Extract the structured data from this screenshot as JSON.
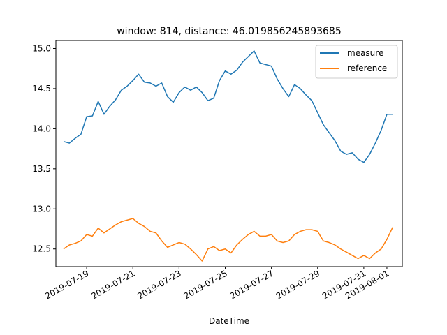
{
  "chart_data": {
    "type": "line",
    "title": "window: 814, distance: 46.019856245893685",
    "xlabel": "DateTime",
    "ylabel": "",
    "x_range": [
      "2019-07-17T16:00",
      "2019-08-01T16:00"
    ],
    "ylim": [
      12.28,
      15.1
    ],
    "yticks": [
      12.5,
      13.0,
      13.5,
      14.0,
      14.5,
      15.0
    ],
    "ytick_labels": [
      "12.5",
      "13.0",
      "13.5",
      "14.0",
      "14.5",
      "15.0"
    ],
    "xticks": [
      "2019-07-19",
      "2019-07-21",
      "2019-07-23",
      "2019-07-25",
      "2019-07-27",
      "2019-07-29",
      "2019-07-31",
      "2019-08-01"
    ],
    "grid": false,
    "legend_position": "top-right",
    "series": [
      {
        "name": "measure",
        "color": "#1f77b4",
        "x": [
          "2019-07-18T00:00",
          "2019-07-18T06:00",
          "2019-07-18T12:00",
          "2019-07-18T18:00",
          "2019-07-19T00:00",
          "2019-07-19T06:00",
          "2019-07-19T12:00",
          "2019-07-19T18:00",
          "2019-07-20T00:00",
          "2019-07-20T06:00",
          "2019-07-20T12:00",
          "2019-07-20T18:00",
          "2019-07-21T00:00",
          "2019-07-21T06:00",
          "2019-07-21T12:00",
          "2019-07-21T18:00",
          "2019-07-22T00:00",
          "2019-07-22T06:00",
          "2019-07-22T12:00",
          "2019-07-22T18:00",
          "2019-07-23T00:00",
          "2019-07-23T06:00",
          "2019-07-23T12:00",
          "2019-07-23T18:00",
          "2019-07-24T00:00",
          "2019-07-24T06:00",
          "2019-07-24T12:00",
          "2019-07-24T18:00",
          "2019-07-25T00:00",
          "2019-07-25T06:00",
          "2019-07-25T12:00",
          "2019-07-25T18:00",
          "2019-07-26T00:00",
          "2019-07-26T06:00",
          "2019-07-26T12:00",
          "2019-07-26T18:00",
          "2019-07-27T00:00",
          "2019-07-27T06:00",
          "2019-07-27T12:00",
          "2019-07-27T18:00",
          "2019-07-28T00:00",
          "2019-07-28T06:00",
          "2019-07-28T12:00",
          "2019-07-28T18:00",
          "2019-07-29T00:00",
          "2019-07-29T06:00",
          "2019-07-29T12:00",
          "2019-07-29T18:00",
          "2019-07-30T00:00",
          "2019-07-30T06:00",
          "2019-07-30T12:00",
          "2019-07-30T18:00",
          "2019-07-31T00:00",
          "2019-07-31T06:00",
          "2019-07-31T12:00",
          "2019-07-31T18:00",
          "2019-08-01T00:00",
          "2019-08-01T06:00"
        ],
        "values": [
          13.84,
          13.82,
          13.88,
          13.93,
          14.15,
          14.16,
          14.34,
          14.18,
          14.28,
          14.36,
          14.48,
          14.53,
          14.6,
          14.68,
          14.58,
          14.57,
          14.53,
          14.57,
          14.4,
          14.33,
          14.45,
          14.52,
          14.48,
          14.52,
          14.45,
          14.35,
          14.38,
          14.6,
          14.72,
          14.68,
          14.73,
          14.83,
          14.9,
          14.97,
          14.82,
          14.8,
          14.78,
          14.62,
          14.5,
          14.4,
          14.55,
          14.5,
          14.42,
          14.35,
          14.2,
          14.05,
          13.95,
          13.85,
          13.72,
          13.68,
          13.7,
          13.62,
          13.58,
          13.68,
          13.82,
          13.98,
          14.18,
          14.18
        ]
      },
      {
        "name": "reference",
        "color": "#ff7f0e",
        "x": [
          "2019-07-18T00:00",
          "2019-07-18T06:00",
          "2019-07-18T12:00",
          "2019-07-18T18:00",
          "2019-07-19T00:00",
          "2019-07-19T06:00",
          "2019-07-19T12:00",
          "2019-07-19T18:00",
          "2019-07-20T00:00",
          "2019-07-20T06:00",
          "2019-07-20T12:00",
          "2019-07-20T18:00",
          "2019-07-21T00:00",
          "2019-07-21T06:00",
          "2019-07-21T12:00",
          "2019-07-21T18:00",
          "2019-07-22T00:00",
          "2019-07-22T06:00",
          "2019-07-22T12:00",
          "2019-07-22T18:00",
          "2019-07-23T00:00",
          "2019-07-23T06:00",
          "2019-07-23T12:00",
          "2019-07-23T18:00",
          "2019-07-24T00:00",
          "2019-07-24T06:00",
          "2019-07-24T12:00",
          "2019-07-24T18:00",
          "2019-07-25T00:00",
          "2019-07-25T06:00",
          "2019-07-25T12:00",
          "2019-07-25T18:00",
          "2019-07-26T00:00",
          "2019-07-26T06:00",
          "2019-07-26T12:00",
          "2019-07-26T18:00",
          "2019-07-27T00:00",
          "2019-07-27T06:00",
          "2019-07-27T12:00",
          "2019-07-27T18:00",
          "2019-07-28T00:00",
          "2019-07-28T06:00",
          "2019-07-28T12:00",
          "2019-07-28T18:00",
          "2019-07-29T00:00",
          "2019-07-29T06:00",
          "2019-07-29T12:00",
          "2019-07-29T18:00",
          "2019-07-30T00:00",
          "2019-07-30T06:00",
          "2019-07-30T12:00",
          "2019-07-30T18:00",
          "2019-07-31T00:00",
          "2019-07-31T06:00",
          "2019-07-31T12:00",
          "2019-07-31T18:00",
          "2019-08-01T00:00",
          "2019-08-01T06:00"
        ],
        "values": [
          12.5,
          12.55,
          12.57,
          12.6,
          12.68,
          12.66,
          12.76,
          12.7,
          12.75,
          12.8,
          12.84,
          12.86,
          12.88,
          12.82,
          12.78,
          12.72,
          12.7,
          12.6,
          12.52,
          12.55,
          12.58,
          12.56,
          12.5,
          12.43,
          12.35,
          12.5,
          12.53,
          12.48,
          12.5,
          12.45,
          12.55,
          12.62,
          12.68,
          12.72,
          12.66,
          12.66,
          12.68,
          12.6,
          12.58,
          12.6,
          12.68,
          12.72,
          12.74,
          12.74,
          12.72,
          12.6,
          12.58,
          12.55,
          12.5,
          12.46,
          12.42,
          12.38,
          12.42,
          12.38,
          12.45,
          12.5,
          12.62,
          12.77
        ]
      }
    ]
  }
}
